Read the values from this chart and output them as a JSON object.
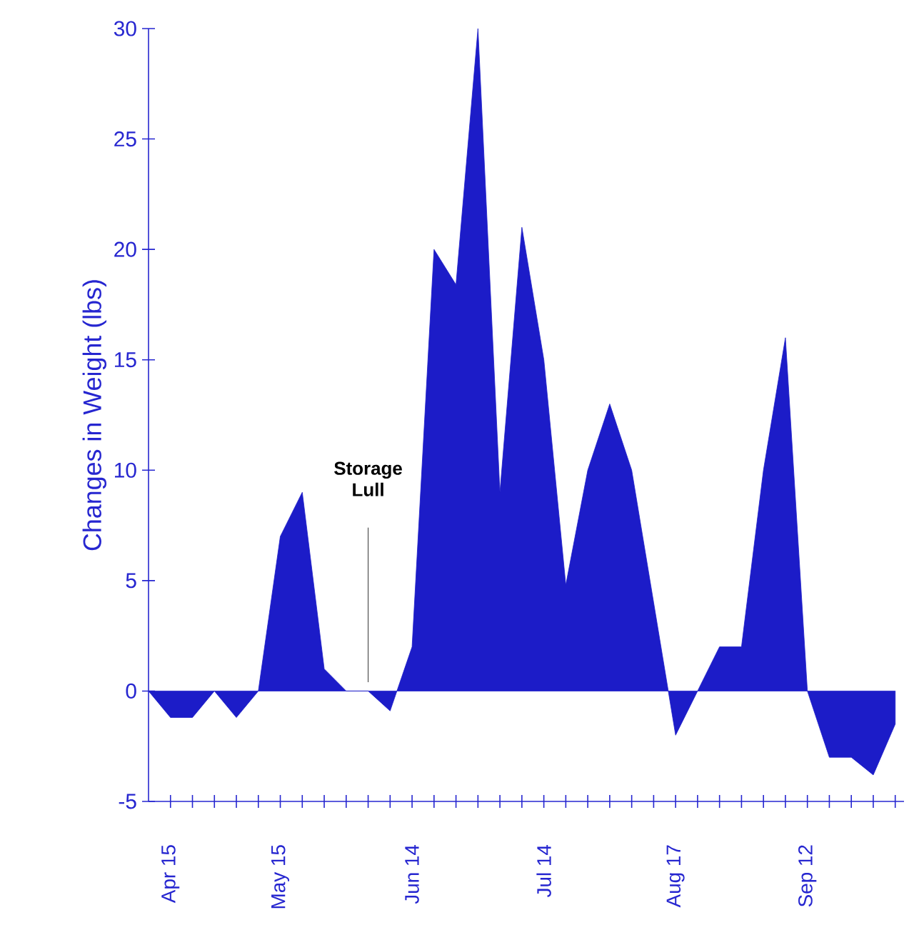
{
  "chart_data": {
    "type": "area",
    "ylabel": "Changes in Weight (lbs)",
    "categories": [
      null,
      "Apr 15",
      null,
      null,
      null,
      null,
      "May 15",
      null,
      null,
      null,
      null,
      null,
      "Jun 14",
      null,
      null,
      null,
      null,
      null,
      "Jul 14",
      null,
      null,
      null,
      null,
      null,
      "Aug 17",
      null,
      null,
      null,
      null,
      null,
      "Sep 12",
      null,
      null,
      null,
      null
    ],
    "values": [
      0,
      -1.2,
      -1.2,
      0,
      -1.2,
      0,
      7,
      9,
      1,
      0,
      0,
      -0.9,
      2,
      20,
      18.4,
      30,
      9,
      21,
      15,
      4.8,
      10,
      13,
      10,
      4,
      -2,
      0,
      2,
      2,
      10,
      16,
      0,
      -3,
      -3,
      -3.8,
      -1.5
    ],
    "color": "#1c1cc8",
    "ylim": [
      -5,
      30
    ],
    "yticks": [
      -5,
      0,
      5,
      10,
      15,
      20,
      25,
      30
    ],
    "annotations": [
      "Storage Lull"
    ]
  }
}
